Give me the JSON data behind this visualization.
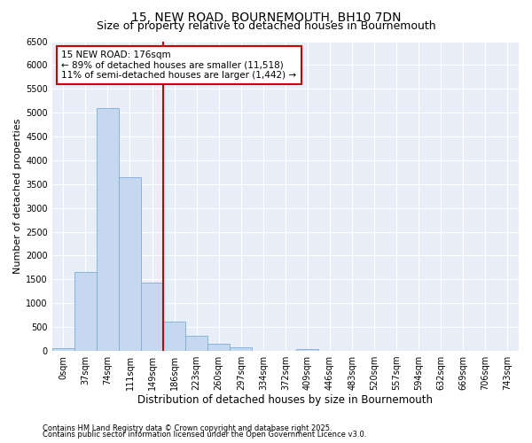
{
  "title1": "15, NEW ROAD, BOURNEMOUTH, BH10 7DN",
  "title2": "Size of property relative to detached houses in Bournemouth",
  "xlabel": "Distribution of detached houses by size in Bournemouth",
  "ylabel": "Number of detached properties",
  "categories": [
    "0sqm",
    "37sqm",
    "74sqm",
    "111sqm",
    "149sqm",
    "186sqm",
    "223sqm",
    "260sqm",
    "297sqm",
    "334sqm",
    "372sqm",
    "409sqm",
    "446sqm",
    "483sqm",
    "520sqm",
    "557sqm",
    "594sqm",
    "632sqm",
    "669sqm",
    "706sqm",
    "743sqm"
  ],
  "values": [
    60,
    1650,
    5100,
    3650,
    1440,
    620,
    310,
    155,
    65,
    0,
    0,
    45,
    0,
    0,
    0,
    0,
    0,
    0,
    0,
    0,
    0
  ],
  "bar_color": "#c5d8f0",
  "bar_edge_color": "#7bafd4",
  "vline_color": "#cc0000",
  "annotation_text": "15 NEW ROAD: 176sqm\n← 89% of detached houses are smaller (11,518)\n11% of semi-detached houses are larger (1,442) →",
  "ylim": [
    0,
    6500
  ],
  "yticks": [
    0,
    500,
    1000,
    1500,
    2000,
    2500,
    3000,
    3500,
    4000,
    4500,
    5000,
    5500,
    6000,
    6500
  ],
  "bg_color": "#e8eef8",
  "grid_color": "#ffffff",
  "footer1": "Contains HM Land Registry data © Crown copyright and database right 2025.",
  "footer2": "Contains public sector information licensed under the Open Government Licence v3.0.",
  "title1_fontsize": 10,
  "title2_fontsize": 9,
  "xlabel_fontsize": 8.5,
  "ylabel_fontsize": 8,
  "tick_fontsize": 7,
  "annot_fontsize": 7.5,
  "footer_fontsize": 6
}
